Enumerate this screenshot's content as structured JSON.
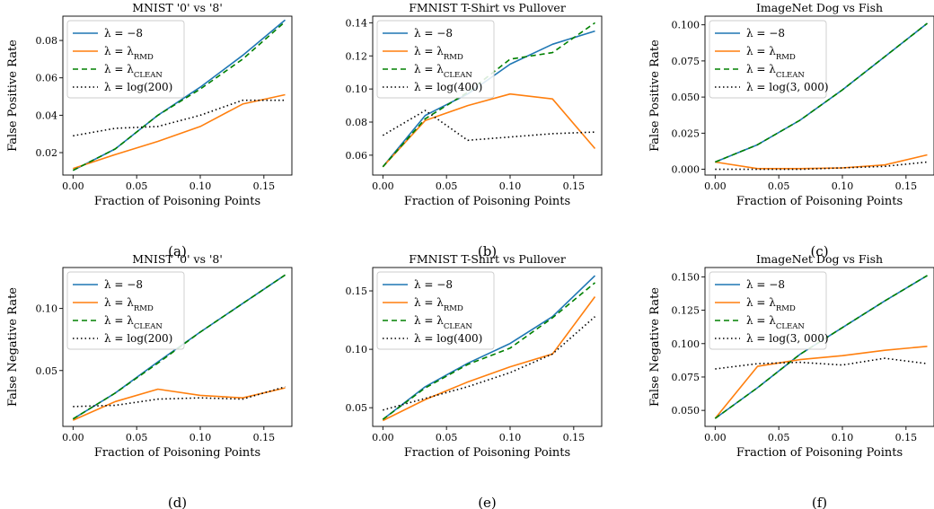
{
  "styles": {
    "series_colors": [
      "#1f77b4",
      "#ff7f0e",
      "#008000",
      "#000000"
    ],
    "series_dash": [
      "",
      "",
      "6,4",
      "1.5,3"
    ]
  },
  "chart_data": [
    {
      "type": "line",
      "caption": "(a)",
      "title": "MNIST '0' vs '8'",
      "xlabel": "Fraction of Poisoning Points",
      "ylabel": "False Positive Rate",
      "xlim": [
        -0.008,
        0.172
      ],
      "ylim": [
        0.008,
        0.093
      ],
      "xticks": [
        0,
        0.05,
        0.1,
        0.15
      ],
      "xtick_labels": [
        "0.00",
        "0.05",
        "0.10",
        "0.15"
      ],
      "yticks": [
        0.02,
        0.04,
        0.06,
        0.08
      ],
      "ytick_labels": [
        "0.02",
        "0.04",
        "0.06",
        "0.08"
      ],
      "legend": "top-left",
      "x": [
        0,
        0.0333,
        0.0667,
        0.1,
        0.1333,
        0.1667
      ],
      "series": [
        {
          "name": "λ = −8",
          "values": [
            0.0105,
            0.022,
            0.04,
            0.055,
            0.072,
            0.091
          ]
        },
        {
          "name": "λ = λRMD",
          "values": [
            0.0115,
            0.019,
            0.026,
            0.034,
            0.046,
            0.051
          ]
        },
        {
          "name": "λ = λCLEAN",
          "values": [
            0.0105,
            0.022,
            0.04,
            0.054,
            0.07,
            0.09
          ]
        },
        {
          "name": "λ = log(200)",
          "values": [
            0.029,
            0.033,
            0.034,
            0.04,
            0.048,
            0.048
          ]
        }
      ]
    },
    {
      "type": "line",
      "caption": "(b)",
      "title": "FMNIST T-Shirt vs Pullover",
      "xlabel": "Fraction of Poisoning Points",
      "ylabel": "",
      "xlim": [
        -0.008,
        0.172
      ],
      "ylim": [
        0.048,
        0.144
      ],
      "xticks": [
        0,
        0.05,
        0.1,
        0.15
      ],
      "xtick_labels": [
        "0.00",
        "0.05",
        "0.10",
        "0.15"
      ],
      "yticks": [
        0.06,
        0.08,
        0.1,
        0.12,
        0.14
      ],
      "ytick_labels": [
        "0.06",
        "0.08",
        "0.10",
        "0.12",
        "0.14"
      ],
      "legend": "top-left",
      "x": [
        0,
        0.0333,
        0.0667,
        0.1,
        0.1333,
        0.1667
      ],
      "series": [
        {
          "name": "λ = −8",
          "values": [
            0.053,
            0.084,
            0.097,
            0.115,
            0.127,
            0.135
          ]
        },
        {
          "name": "λ = λRMD",
          "values": [
            0.053,
            0.081,
            0.09,
            0.097,
            0.094,
            0.064
          ]
        },
        {
          "name": "λ = λCLEAN",
          "values": [
            0.053,
            0.082,
            0.098,
            0.118,
            0.122,
            0.14
          ]
        },
        {
          "name": "λ = log(400)",
          "values": [
            0.072,
            0.087,
            0.069,
            0.071,
            0.073,
            0.074
          ]
        }
      ]
    },
    {
      "type": "line",
      "caption": "(c)",
      "title": "ImageNet Dog vs Fish",
      "xlabel": "Fraction of Poisoning Points",
      "ylabel": "False Positive Rate",
      "xlim": [
        -0.008,
        0.172
      ],
      "ylim": [
        -0.004,
        0.106
      ],
      "xticks": [
        0,
        0.05,
        0.1,
        0.15
      ],
      "xtick_labels": [
        "0.00",
        "0.05",
        "0.10",
        "0.15"
      ],
      "yticks": [
        0,
        0.025,
        0.05,
        0.075,
        0.1
      ],
      "ytick_labels": [
        "0.000",
        "0.025",
        "0.050",
        "0.075",
        "0.100"
      ],
      "legend": "top-left",
      "x": [
        0,
        0.0333,
        0.0667,
        0.1,
        0.1333,
        0.1667
      ],
      "series": [
        {
          "name": "λ = −8",
          "values": [
            0.005,
            0.017,
            0.034,
            0.055,
            0.078,
            0.101
          ]
        },
        {
          "name": "λ = λRMD",
          "values": [
            0.005,
            0.0005,
            0.0005,
            0.001,
            0.003,
            0.01
          ]
        },
        {
          "name": "λ = λCLEAN",
          "values": [
            0.005,
            0.017,
            0.034,
            0.055,
            0.078,
            0.101
          ]
        },
        {
          "name": "λ = log(3, 000)",
          "values": [
            0.0,
            0.0,
            0.0,
            0.001,
            0.002,
            0.005
          ]
        }
      ]
    },
    {
      "type": "line",
      "caption": "(d)",
      "title": "MNIST '0' vs '8'",
      "xlabel": "Fraction of Poisoning Points",
      "ylabel": "False Negative Rate",
      "xlim": [
        -0.008,
        0.172
      ],
      "ylim": [
        0.005,
        0.133
      ],
      "xticks": [
        0,
        0.05,
        0.1,
        0.15
      ],
      "xtick_labels": [
        "0.00",
        "0.05",
        "0.10",
        "0.15"
      ],
      "yticks": [
        0.05,
        0.1
      ],
      "ytick_labels": [
        "0.05",
        "0.10"
      ],
      "legend": "top-left",
      "x": [
        0,
        0.0333,
        0.0667,
        0.1,
        0.1333,
        0.1667
      ],
      "series": [
        {
          "name": "λ = −8",
          "values": [
            0.011,
            0.032,
            0.057,
            0.081,
            0.104,
            0.127
          ]
        },
        {
          "name": "λ = λRMD",
          "values": [
            0.01,
            0.025,
            0.035,
            0.03,
            0.028,
            0.036
          ]
        },
        {
          "name": "λ = λCLEAN",
          "values": [
            0.011,
            0.032,
            0.056,
            0.081,
            0.104,
            0.127
          ]
        },
        {
          "name": "λ = log(200)",
          "values": [
            0.021,
            0.022,
            0.027,
            0.028,
            0.027,
            0.037
          ]
        }
      ]
    },
    {
      "type": "line",
      "caption": "(e)",
      "title": "FMNIST T-Shirt vs Pullover",
      "xlabel": "Fraction of Poisoning Points",
      "ylabel": "",
      "xlim": [
        -0.008,
        0.172
      ],
      "ylim": [
        0.034,
        0.17
      ],
      "xticks": [
        0,
        0.05,
        0.1,
        0.15
      ],
      "xtick_labels": [
        "0.00",
        "0.05",
        "0.10",
        "0.15"
      ],
      "yticks": [
        0.05,
        0.1,
        0.15
      ],
      "ytick_labels": [
        "0.05",
        "0.10",
        "0.15"
      ],
      "legend": "top-left",
      "x": [
        0,
        0.0333,
        0.0667,
        0.1,
        0.1333,
        0.1667
      ],
      "series": [
        {
          "name": "λ = −8",
          "values": [
            0.04,
            0.068,
            0.088,
            0.105,
            0.128,
            0.163
          ]
        },
        {
          "name": "λ = λRMD",
          "values": [
            0.039,
            0.057,
            0.072,
            0.085,
            0.096,
            0.145
          ]
        },
        {
          "name": "λ = λCLEAN",
          "values": [
            0.04,
            0.067,
            0.087,
            0.101,
            0.127,
            0.157
          ]
        },
        {
          "name": "λ = log(400)",
          "values": [
            0.048,
            0.058,
            0.068,
            0.08,
            0.096,
            0.128
          ]
        }
      ]
    },
    {
      "type": "line",
      "caption": "(f)",
      "title": "ImageNet Dog vs Fish",
      "xlabel": "Fraction of Poisoning Points",
      "ylabel": "False Negative Rate",
      "xlim": [
        -0.008,
        0.172
      ],
      "ylim": [
        0.038,
        0.157
      ],
      "xticks": [
        0,
        0.05,
        0.1,
        0.15
      ],
      "xtick_labels": [
        "0.00",
        "0.05",
        "0.10",
        "0.15"
      ],
      "yticks": [
        0.05,
        0.075,
        0.1,
        0.125,
        0.15
      ],
      "ytick_labels": [
        "0.050",
        "0.075",
        "0.100",
        "0.125",
        "0.150"
      ],
      "legend": "top-left",
      "x": [
        0,
        0.0333,
        0.0667,
        0.1,
        0.1333,
        0.1667
      ],
      "series": [
        {
          "name": "λ = −8",
          "values": [
            0.044,
            0.067,
            0.092,
            0.112,
            0.132,
            0.151
          ]
        },
        {
          "name": "λ = λRMD",
          "values": [
            0.044,
            0.083,
            0.088,
            0.091,
            0.095,
            0.098
          ]
        },
        {
          "name": "λ = λCLEAN",
          "values": [
            0.044,
            0.067,
            0.092,
            0.112,
            0.132,
            0.151
          ]
        },
        {
          "name": "λ = log(3, 000)",
          "values": [
            0.081,
            0.085,
            0.086,
            0.084,
            0.089,
            0.085
          ]
        }
      ]
    }
  ]
}
